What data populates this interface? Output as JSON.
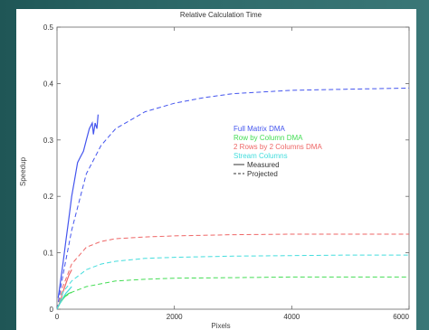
{
  "chart_data": {
    "type": "line",
    "title": "Relative Calculation Time",
    "xlabel": "Pixels",
    "ylabel": "Speedup",
    "xlim": [
      0,
      6000
    ],
    "ylim": [
      0,
      0.5
    ],
    "xticks": [
      0,
      2000,
      4000,
      6000
    ],
    "xtick_labels": [
      "0",
      "2000",
      "4000",
      "6000"
    ],
    "yticks": [
      0,
      0.1,
      0.2,
      0.3,
      0.4,
      0.5
    ],
    "ytick_labels": [
      "0",
      "0.1",
      "0.2",
      "0.3",
      "0.4",
      "0.5"
    ],
    "legend_position": "center-right",
    "series": [
      {
        "name": "Full Matrix DMA",
        "color": "#4455ee",
        "projected": {
          "x": [
            0,
            100,
            250,
            500,
            750,
            1000,
            1500,
            2000,
            2500,
            3000,
            4000,
            5000,
            6000
          ],
          "y": [
            0,
            0.06,
            0.14,
            0.24,
            0.29,
            0.32,
            0.35,
            0.365,
            0.375,
            0.382,
            0.388,
            0.39,
            0.392
          ]
        },
        "measured": {
          "x": [
            20,
            60,
            100,
            150,
            200,
            250,
            300,
            350,
            400,
            450,
            500,
            550,
            600,
            620,
            650,
            680,
            700
          ],
          "y": [
            0.02,
            0.05,
            0.08,
            0.12,
            0.16,
            0.2,
            0.23,
            0.26,
            0.27,
            0.28,
            0.3,
            0.32,
            0.33,
            0.31,
            0.33,
            0.32,
            0.345
          ]
        }
      },
      {
        "name": "Row by Column DMA",
        "color": "#44dd55",
        "projected": {
          "x": [
            0,
            100,
            250,
            500,
            750,
            1000,
            1500,
            2000,
            3000,
            4000,
            5000,
            6000
          ],
          "y": [
            0,
            0.02,
            0.03,
            0.04,
            0.045,
            0.05,
            0.053,
            0.055,
            0.056,
            0.057,
            0.057,
            0.057
          ]
        },
        "measured": {
          "x": [
            20,
            60,
            100,
            150,
            200,
            250
          ],
          "y": [
            0.005,
            0.012,
            0.018,
            0.024,
            0.028,
            0.03
          ]
        }
      },
      {
        "name": "2 Rows by 2 Columns DMA",
        "color": "#ee6666",
        "projected": {
          "x": [
            0,
            100,
            250,
            500,
            750,
            1000,
            1500,
            2000,
            3000,
            4000,
            5000,
            6000
          ],
          "y": [
            0,
            0.04,
            0.08,
            0.11,
            0.12,
            0.125,
            0.128,
            0.13,
            0.132,
            0.133,
            0.133,
            0.133
          ]
        },
        "measured": {
          "x": [
            20,
            60,
            100,
            150,
            200,
            250
          ],
          "y": [
            0.005,
            0.015,
            0.03,
            0.045,
            0.06,
            0.07
          ]
        }
      },
      {
        "name": "Stream Columns",
        "color": "#44dddd",
        "projected": {
          "x": [
            0,
            100,
            250,
            500,
            750,
            1000,
            1500,
            2000,
            3000,
            4000,
            5000,
            6000
          ],
          "y": [
            0,
            0.03,
            0.05,
            0.07,
            0.08,
            0.085,
            0.09,
            0.092,
            0.094,
            0.095,
            0.096,
            0.096
          ]
        },
        "measured": {
          "x": [
            20,
            60,
            100,
            150,
            200,
            250
          ],
          "y": [
            0.005,
            0.012,
            0.02,
            0.028,
            0.034,
            0.04
          ]
        }
      }
    ],
    "line_styles": [
      {
        "name": "Measured",
        "dash": "solid"
      },
      {
        "name": "Projected",
        "dash": "dashed"
      }
    ]
  }
}
